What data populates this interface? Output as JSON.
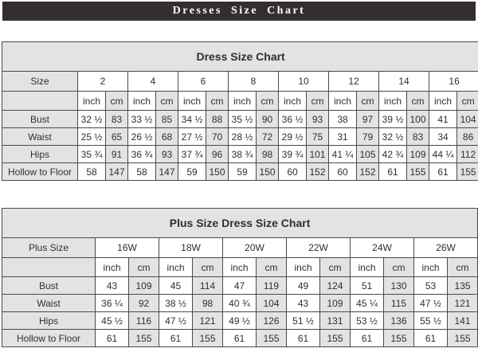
{
  "page_title": "Dresses Size Chart",
  "colors": {
    "header_bar_bg": "#332f2f",
    "header_bar_text": "#ffffff",
    "shaded_cell_bg": "#e3e3e3",
    "cell_bg": "#ffffff",
    "border_color": "#4a4a4a",
    "text_color": "#302f2f"
  },
  "chart_data": [
    {
      "type": "table",
      "title": "Dress Size Chart",
      "corner_label": "Size",
      "sizes": [
        "2",
        "4",
        "6",
        "8",
        "10",
        "12",
        "14",
        "16"
      ],
      "units": [
        "inch",
        "cm"
      ],
      "rows": [
        {
          "label": "Bust",
          "inch": [
            "32 ½",
            "33 ½",
            "34 ½",
            "35 ½",
            "36 ½",
            "38",
            "39 ½",
            "41"
          ],
          "cm": [
            "83",
            "85",
            "88",
            "90",
            "93",
            "97",
            "100",
            "104"
          ]
        },
        {
          "label": "Waist",
          "inch": [
            "25 ½",
            "26 ½",
            "27 ½",
            "28 ½",
            "29 ½",
            "31",
            "32 ½",
            "34"
          ],
          "cm": [
            "65",
            "68",
            "70",
            "72",
            "75",
            "79",
            "83",
            "86"
          ]
        },
        {
          "label": "Hips",
          "inch": [
            "35 ¾",
            "36 ¾",
            "37 ¾",
            "38 ¾",
            "39 ¾",
            "41 ¼",
            "42 ¾",
            "44 ¼"
          ],
          "cm": [
            "91",
            "93",
            "96",
            "98",
            "101",
            "105",
            "109",
            "112"
          ]
        },
        {
          "label": "Hollow to Floor",
          "inch": [
            "58",
            "58",
            "59",
            "59",
            "60",
            "60",
            "61",
            "61"
          ],
          "cm": [
            "147",
            "147",
            "150",
            "150",
            "152",
            "152",
            "155",
            "155"
          ]
        }
      ]
    },
    {
      "type": "table",
      "title": "Plus Size Dress Size Chart",
      "corner_label": "Plus Size",
      "sizes": [
        "16W",
        "18W",
        "20W",
        "22W",
        "24W",
        "26W"
      ],
      "units": [
        "inch",
        "cm"
      ],
      "rows": [
        {
          "label": "Bust",
          "inch": [
            "43",
            "45",
            "47",
            "49",
            "51",
            "53"
          ],
          "cm": [
            "109",
            "114",
            "119",
            "124",
            "130",
            "135"
          ]
        },
        {
          "label": "Waist",
          "inch": [
            "36 ¼",
            "38 ½",
            "40 ¾",
            "43",
            "45 ¼",
            "47 ½"
          ],
          "cm": [
            "92",
            "98",
            "104",
            "109",
            "115",
            "121"
          ]
        },
        {
          "label": "Hips",
          "inch": [
            "45 ½",
            "47 ½",
            "49 ½",
            "51 ½",
            "53 ½",
            "55 ½"
          ],
          "cm": [
            "116",
            "121",
            "126",
            "131",
            "136",
            "141"
          ]
        },
        {
          "label": "Hollow to Floor",
          "inch": [
            "61",
            "61",
            "61",
            "61",
            "61",
            "61"
          ],
          "cm": [
            "155",
            "155",
            "155",
            "155",
            "155",
            "155"
          ]
        }
      ]
    }
  ]
}
